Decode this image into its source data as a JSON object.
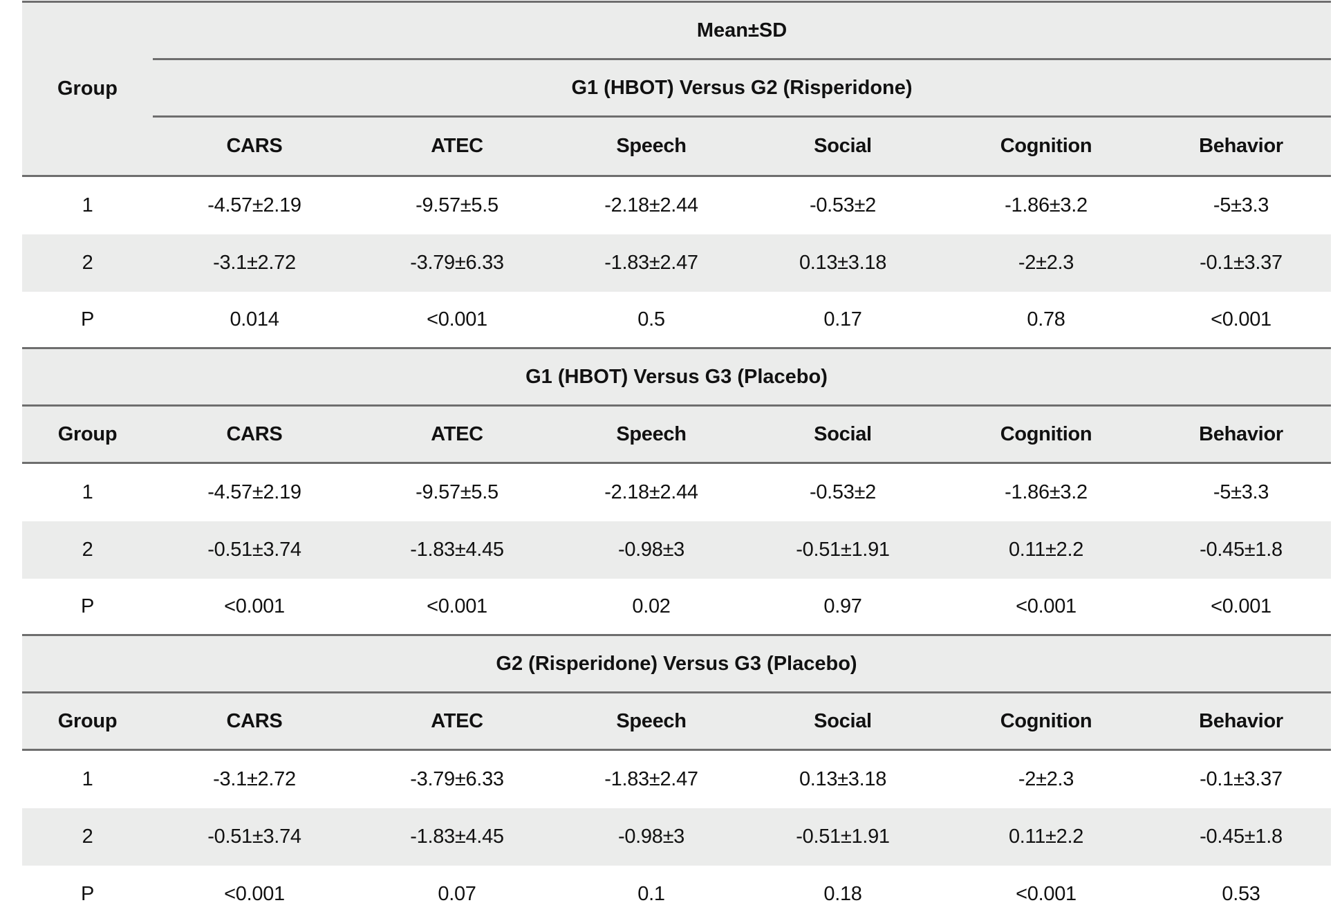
{
  "table": {
    "group_label": "Group",
    "super_header": "Mean±SD",
    "columns": [
      "CARS",
      "ATEC",
      "Speech",
      "Social",
      "Cognition",
      "Behavior"
    ],
    "sections": [
      {
        "title": "G1 (HBOT) Versus G2 (Risperidone)",
        "rows": [
          {
            "group": "1",
            "values": [
              "-4.57±2.19",
              "-9.57±5.5",
              "-2.18±2.44",
              "-0.53±2",
              "-1.86±3.2",
              "-5±3.3"
            ]
          },
          {
            "group": "2",
            "values": [
              "-3.1±2.72",
              "-3.79±6.33",
              "-1.83±2.47",
              "0.13±3.18",
              "-2±2.3",
              "-0.1±3.37"
            ]
          },
          {
            "group": "P",
            "values": [
              "0.014",
              "<0.001",
              "0.5",
              "0.17",
              "0.78",
              "<0.001"
            ]
          }
        ]
      },
      {
        "title": "G1 (HBOT) Versus G3 (Placebo)",
        "rows": [
          {
            "group": "1",
            "values": [
              "-4.57±2.19",
              "-9.57±5.5",
              "-2.18±2.44",
              "-0.53±2",
              "-1.86±3.2",
              "-5±3.3"
            ]
          },
          {
            "group": "2",
            "values": [
              "-0.51±3.74",
              "-1.83±4.45",
              "-0.98±3",
              "-0.51±1.91",
              "0.11±2.2",
              "-0.45±1.8"
            ]
          },
          {
            "group": "P",
            "values": [
              "<0.001",
              "<0.001",
              "0.02",
              "0.97",
              "<0.001",
              "<0.001"
            ]
          }
        ]
      },
      {
        "title": "G2 (Risperidone) Versus G3 (Placebo)",
        "rows": [
          {
            "group": "1",
            "values": [
              "-3.1±2.72",
              "-3.79±6.33",
              "-1.83±2.47",
              "0.13±3.18",
              "-2±2.3",
              "-0.1±3.37"
            ]
          },
          {
            "group": "2",
            "values": [
              "-0.51±3.74",
              "-1.83±4.45",
              "-0.98±3",
              "-0.51±1.91",
              "0.11±2.2",
              "-0.45±1.8"
            ]
          },
          {
            "group": "P",
            "values": [
              "<0.001",
              "0.07",
              "0.1",
              "0.18",
              "<0.001",
              "0.53"
            ]
          }
        ]
      }
    ]
  },
  "colors": {
    "header_bg": "#ebeceb",
    "rule": "#6e6e6e",
    "text": "#111111"
  }
}
